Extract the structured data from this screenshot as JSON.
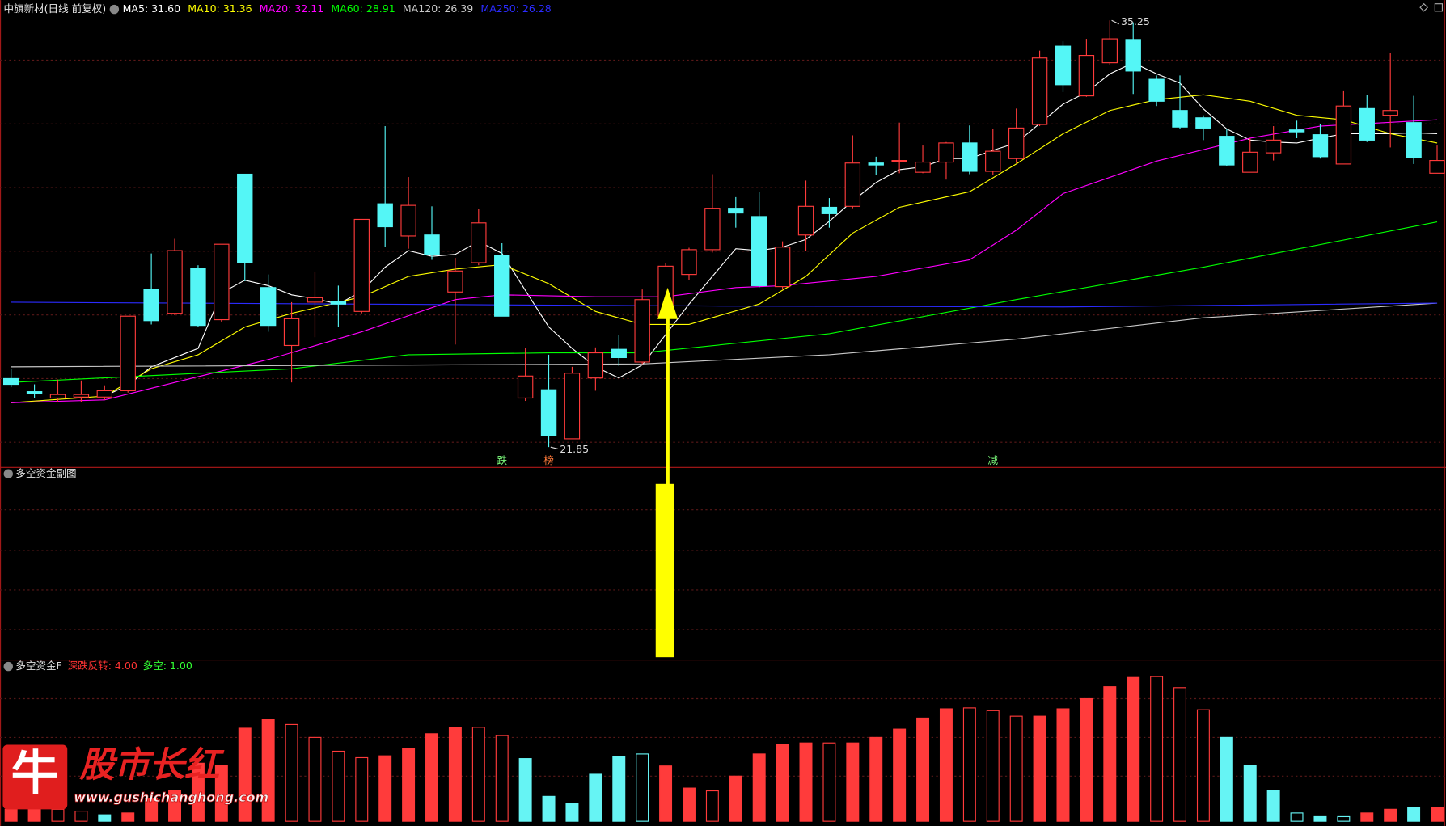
{
  "chart_data": [
    {
      "type": "candlestick",
      "title": "中旗新材(日线 前复权)",
      "up_color": "#ff3b3b",
      "down_color": "#54f6f6",
      "ylim": [
        21.27,
        35.8
      ],
      "yticks": [
        22,
        24,
        26,
        28,
        30,
        32,
        34
      ],
      "grid": true,
      "open": [
        24.0,
        23.59,
        23.39,
        23.42,
        23.42,
        23.62,
        26.8,
        26.05,
        27.47,
        25.85,
        30.42,
        26.86,
        25.04,
        26.4,
        26.43,
        26.11,
        29.49,
        28.48,
        28.51,
        26.72,
        27.64,
        27.87,
        23.39,
        23.65,
        22.11,
        24.02,
        24.92,
        24.52,
        25.96,
        27.27,
        28.05,
        29.35,
        29.09,
        26.89,
        28.51,
        29.38,
        29.41,
        30.77,
        30.83,
        30.48,
        30.8,
        31.4,
        30.51,
        30.91,
        31.98,
        34.44,
        32.88,
        33.92,
        34.65,
        33.4,
        32.42,
        32.19,
        31.61,
        30.48,
        31.09,
        31.81,
        31.66,
        30.74,
        32.48,
        32.27,
        32.04,
        30.45
      ],
      "high": [
        24.31,
        23.82,
        23.97,
        23.94,
        23.79,
        25.96,
        27.93,
        28.39,
        27.56,
        28.22,
        30.42,
        27.27,
        26.4,
        27.35,
        26.92,
        29.0,
        31.93,
        30.33,
        29.41,
        27.79,
        29.32,
        28.25,
        24.95,
        24.75,
        24.37,
        24.98,
        25.36,
        26.8,
        27.64,
        28.11,
        30.42,
        29.7,
        29.87,
        28.31,
        30.22,
        29.67,
        31.64,
        30.97,
        32.04,
        31.32,
        31.43,
        31.95,
        31.84,
        32.48,
        34.3,
        34.59,
        34.67,
        35.25,
        35.19,
        33.52,
        33.52,
        32.27,
        31.84,
        31.55,
        31.93,
        32.1,
        32.0,
        33.05,
        32.91,
        34.24,
        32.88,
        31.32
      ],
      "low": [
        23.73,
        23.39,
        23.27,
        23.27,
        23.33,
        23.56,
        25.7,
        25.99,
        25.62,
        25.79,
        27.06,
        25.47,
        23.88,
        25.3,
        25.62,
        26.05,
        28.13,
        28.08,
        27.73,
        25.07,
        27.56,
        25.96,
        23.3,
        21.85,
        22.11,
        23.62,
        24.4,
        24.46,
        25.91,
        27.09,
        27.96,
        28.74,
        26.86,
        26.8,
        28.02,
        28.74,
        29.35,
        30.39,
        30.45,
        30.45,
        30.25,
        30.42,
        30.39,
        30.77,
        31.93,
        33.0,
        32.85,
        33.86,
        32.94,
        32.56,
        31.84,
        31.49,
        30.68,
        30.48,
        30.85,
        31.55,
        30.91,
        30.74,
        31.43,
        31.26,
        30.74,
        30.45
      ],
      "close": [
        23.82,
        23.53,
        23.5,
        23.5,
        23.62,
        25.96,
        25.82,
        28.02,
        25.67,
        28.22,
        27.64,
        25.67,
        25.88,
        26.54,
        26.34,
        29.0,
        28.77,
        29.44,
        27.9,
        27.38,
        28.89,
        25.96,
        24.08,
        22.2,
        24.17,
        24.81,
        24.66,
        26.48,
        27.53,
        28.05,
        29.35,
        29.2,
        26.92,
        28.13,
        29.41,
        29.18,
        30.77,
        30.71,
        30.85,
        30.8,
        31.4,
        30.51,
        31.14,
        31.87,
        34.07,
        33.23,
        34.15,
        34.67,
        33.66,
        32.71,
        31.9,
        31.87,
        30.71,
        31.11,
        31.49,
        31.75,
        30.97,
        32.56,
        31.49,
        32.42,
        30.94,
        30.85
      ],
      "series": [
        {
          "name": "MA5: 31.60",
          "color": "#ffffff",
          "values": [
            null,
            null,
            null,
            null,
            23.45,
            23.79,
            24.37,
            24.66,
            24.95,
            26.69,
            27.09,
            26.92,
            26.63,
            26.51,
            26.34,
            26.74,
            27.5,
            28.02,
            27.84,
            27.9,
            28.31,
            27.93,
            26.77,
            25.62,
            24.95,
            24.37,
            24.02,
            24.43,
            25.38,
            26.34,
            27.21,
            28.08,
            28.02,
            28.13,
            28.37,
            28.94,
            29.58,
            30.16,
            30.56,
            30.65,
            30.91,
            30.91,
            31.17,
            31.4,
            32.01,
            32.62,
            32.99,
            33.57,
            33.92,
            33.57,
            33.28,
            32.47,
            31.84,
            31.49,
            31.43,
            31.4,
            31.55,
            31.69,
            31.69,
            31.69,
            31.72,
            31.69
          ]
        },
        {
          "name": "MA10: 31.36",
          "color": "#ffff00",
          "x": [
            0,
            4,
            6,
            8,
            10,
            12,
            15,
            17,
            19,
            21,
            23,
            25,
            27,
            29,
            32,
            34,
            36,
            38,
            41,
            43,
            45,
            47,
            49,
            51,
            53,
            55,
            57,
            59,
            61
          ],
          "values": [
            23.24,
            23.45,
            24.31,
            24.75,
            25.62,
            26.05,
            26.57,
            27.21,
            27.44,
            27.58,
            26.98,
            26.11,
            25.7,
            25.7,
            26.34,
            27.21,
            28.57,
            29.38,
            29.87,
            30.74,
            31.69,
            32.42,
            32.76,
            32.91,
            32.71,
            32.27,
            32.13,
            31.69,
            31.4
          ]
        },
        {
          "name": "MA20: 32.11",
          "color": "#ff00ff",
          "x": [
            0,
            4,
            7,
            11,
            15,
            19,
            21,
            25,
            28,
            31,
            33,
            37,
            41,
            43,
            45,
            49,
            53,
            56,
            61
          ],
          "values": [
            23.24,
            23.33,
            23.88,
            24.6,
            25.47,
            26.48,
            26.63,
            26.57,
            26.57,
            26.86,
            26.92,
            27.21,
            27.73,
            28.66,
            29.81,
            30.83,
            31.55,
            31.93,
            32.13
          ]
        },
        {
          "name": "MA60: 28.91",
          "color": "#00ff00",
          "x": [
            0,
            12,
            17,
            23,
            27,
            35,
            43,
            51,
            61
          ],
          "values": [
            23.88,
            24.31,
            24.75,
            24.81,
            24.81,
            25.41,
            26.48,
            27.5,
            28.92
          ]
        },
        {
          "name": "MA120: 26.39",
          "color": "#c8c8c8",
          "x": [
            0,
            27,
            35,
            43,
            51,
            61
          ],
          "values": [
            24.37,
            24.46,
            24.75,
            25.24,
            25.91,
            26.37
          ]
        },
        {
          "name": "MA250: 26.28",
          "color": "#2b2bff",
          "x": [
            0,
            30,
            45,
            61
          ],
          "values": [
            26.4,
            26.28,
            26.25,
            26.37
          ]
        }
      ],
      "markers": [
        {
          "text": "跌",
          "index": 21,
          "color": "#7cfc7c"
        },
        {
          "text": "榜",
          "index": 23,
          "color": "#ff7a3a"
        },
        {
          "text": "减",
          "index": 42,
          "color": "#7cfc7c"
        }
      ]
    },
    {
      "type": "panel",
      "title": "多空资金副图"
    },
    {
      "type": "bar",
      "title": "多空资金F",
      "indicators": [
        {
          "name": "深跌反转: 4.00",
          "color": "#ff3333"
        },
        {
          "name": "多空: 1.00",
          "color": "#33ff33"
        }
      ],
      "ylim": [
        0,
        175
      ],
      "values": [
        13,
        15,
        13,
        11,
        7,
        9,
        25,
        33,
        63,
        61,
        101,
        111,
        105,
        91,
        76,
        69,
        71,
        79,
        95,
        102,
        102,
        93,
        68,
        27,
        19,
        51,
        70,
        73,
        60,
        36,
        33,
        49,
        73,
        83,
        85,
        85,
        85,
        91,
        100,
        112,
        122,
        123,
        120,
        114,
        114,
        122,
        133,
        146,
        156,
        157,
        145,
        121,
        91,
        61,
        33,
        9,
        5,
        5,
        9,
        13,
        15,
        15
      ],
      "colors": [
        "#ff3b3b",
        "#ff3b3b",
        "#ff3b3b",
        "#ff3b3b",
        "#66f4f4",
        "#ff3b3b",
        "#ff3b3b",
        "#ff3b3b",
        "#ff3b3b",
        "#ff3b3b",
        "#ff3b3b",
        "#ff3b3b",
        "#ff3b3b",
        "#ff3b3b",
        "#ff3b3b",
        "#ff3b3b",
        "#ff3b3b",
        "#ff3b3b",
        "#ff3b3b",
        "#ff3b3b",
        "#ff3b3b",
        "#ff3b3b",
        "#66f4f4",
        "#66f4f4",
        "#66f4f4",
        "#66f4f4",
        "#66f4f4",
        "#66f4f4",
        "#ff3b3b",
        "#ff3b3b",
        "#ff3b3b",
        "#ff3b3b",
        "#ff3b3b",
        "#ff3b3b",
        "#ff3b3b",
        "#ff3b3b",
        "#ff3b3b",
        "#ff3b3b",
        "#ff3b3b",
        "#ff3b3b",
        "#ff3b3b",
        "#ff3b3b",
        "#ff3b3b",
        "#ff3b3b",
        "#ff3b3b",
        "#ff3b3b",
        "#ff3b3b",
        "#ff3b3b",
        "#ff3b3b",
        "#ff3b3b",
        "#ff3b3b",
        "#ff3b3b",
        "#66f4f4",
        "#66f4f4",
        "#66f4f4",
        "#66f4f4",
        "#66f4f4",
        "#66f4f4",
        "#ff3b3b",
        "#ff3b3b",
        "#66f4f4",
        "#ff3b3b"
      ],
      "hollow": [
        false,
        false,
        true,
        true,
        false,
        false,
        false,
        false,
        false,
        false,
        false,
        false,
        true,
        true,
        true,
        true,
        false,
        false,
        false,
        false,
        true,
        true,
        false,
        false,
        false,
        false,
        false,
        true,
        false,
        false,
        true,
        false,
        false,
        false,
        false,
        true,
        false,
        false,
        false,
        false,
        false,
        true,
        true,
        true,
        false,
        false,
        false,
        false,
        false,
        true,
        true,
        true,
        false,
        false,
        false,
        true,
        false,
        true,
        false,
        false,
        false,
        false
      ]
    }
  ],
  "watermark": {
    "logo": "牛",
    "name": "股市长红",
    "url": "www.gushichanghong.com"
  }
}
